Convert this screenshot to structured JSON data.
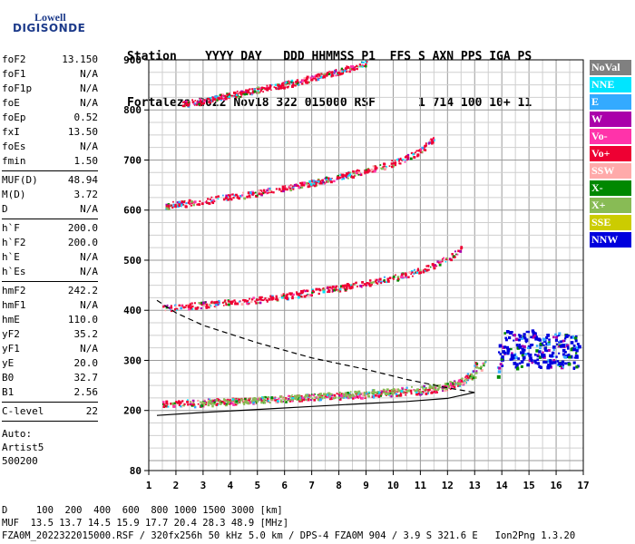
{
  "logo": {
    "line1": "Lowell",
    "line2": "DIGISONDE"
  },
  "header": {
    "labels": [
      "Station",
      "YYYY",
      "DAY",
      "DDD",
      "HHMMSS",
      "P1",
      "FFS",
      "S",
      "AXN",
      "PPS",
      "IGA",
      "PS"
    ],
    "values": [
      "Fortaleza",
      "2022",
      "Nov18",
      "322",
      "015000",
      "RSF",
      "1",
      "714",
      "100",
      "10+",
      "11"
    ]
  },
  "params": [
    {
      "label": "foF2",
      "value": "13.150"
    },
    {
      "label": "foF1",
      "value": "N/A"
    },
    {
      "label": "foF1p",
      "value": "N/A"
    },
    {
      "label": "foE",
      "value": "N/A"
    },
    {
      "label": "foEp",
      "value": "0.52"
    },
    {
      "label": "fxI",
      "value": "13.50"
    },
    {
      "label": "foEs",
      "value": "N/A"
    },
    {
      "label": "fmin",
      "value": "1.50"
    },
    {
      "divider": true
    },
    {
      "label": "MUF(D)",
      "value": "48.94"
    },
    {
      "label": "M(D)",
      "value": "3.72"
    },
    {
      "label": "D",
      "value": "N/A"
    },
    {
      "divider": true
    },
    {
      "label": "h`F",
      "value": "200.0"
    },
    {
      "label": "h`F2",
      "value": "200.0"
    },
    {
      "label": "h`E",
      "value": "N/A"
    },
    {
      "label": "h`Es",
      "value": "N/A"
    },
    {
      "divider": true
    },
    {
      "label": "hmF2",
      "value": "242.2"
    },
    {
      "label": "hmF1",
      "value": "N/A"
    },
    {
      "label": "hmE",
      "value": "110.0"
    },
    {
      "label": "yF2",
      "value": "35.2"
    },
    {
      "label": "yF1",
      "value": "N/A"
    },
    {
      "label": "yE",
      "value": "20.0"
    },
    {
      "label": "B0",
      "value": "32.7"
    },
    {
      "label": "B1",
      "value": "2.56"
    },
    {
      "divider": true
    },
    {
      "label": "C-level",
      "value": "22"
    },
    {
      "divider": true
    }
  ],
  "autoscaling": [
    "Auto:",
    "Artist5",
    "500200"
  ],
  "legend": [
    {
      "label": "NoVal",
      "bg": "#808080",
      "fg": "#ffffff"
    },
    {
      "label": "NNE",
      "bg": "#00e5ff",
      "fg": "#ffffff"
    },
    {
      "label": "E",
      "bg": "#33aaff",
      "fg": "#ffffff"
    },
    {
      "label": "W",
      "bg": "#aa00aa",
      "fg": "#ffffff"
    },
    {
      "label": "Vo-",
      "bg": "#ff33aa",
      "fg": "#ffffff"
    },
    {
      "label": "Vo+",
      "bg": "#ee0033",
      "fg": "#ffffff"
    },
    {
      "label": "SSW",
      "bg": "#ffaaaa",
      "fg": "#ffffff"
    },
    {
      "label": "X-",
      "bg": "#008800",
      "fg": "#ffffff"
    },
    {
      "label": "X+",
      "bg": "#88bb55",
      "fg": "#ffffff"
    },
    {
      "label": "SSE",
      "bg": "#cccc00",
      "fg": "#ffffff"
    },
    {
      "label": "NNW",
      "bg": "#0000dd",
      "fg": "#ffffff"
    }
  ],
  "footer": {
    "line1": "D     100  200  400  600  800 1000 1500 3000 [km]",
    "line2": "MUF  13.5 13.7 14.5 15.9 17.7 20.4 28.3 48.9 [MHz]",
    "line3": "FZA0M_2022322015000.RSF / 320fx256h 50 kHz 5.0 km / DPS-4 FZA0M 904 / 3.9 S 321.6 E   Ion2Png 1.3.20"
  },
  "chart_data": {
    "type": "scatter",
    "xlim": [
      1,
      17
    ],
    "ylim": [
      80,
      900
    ],
    "x_ticks": [
      1,
      2,
      3,
      4,
      5,
      6,
      7,
      8,
      9,
      10,
      11,
      12,
      13,
      14,
      15,
      16,
      17
    ],
    "y_ticks": [
      80,
      200,
      300,
      400,
      500,
      600,
      700,
      800,
      900
    ],
    "grid": true,
    "traces": [
      {
        "name": "o-trace 1st hop",
        "color": "#ee0033",
        "points": [
          [
            1.5,
            214
          ],
          [
            3,
            218
          ],
          [
            5,
            222
          ],
          [
            7,
            228
          ],
          [
            9,
            233
          ],
          [
            10.5,
            238
          ],
          [
            11.5,
            242
          ],
          [
            12.2,
            250
          ],
          [
            12.6,
            262
          ],
          [
            12.9,
            280
          ],
          [
            13.1,
            300
          ]
        ]
      },
      {
        "name": "o-trace 2nd hop",
        "color": "#ee0033",
        "points": [
          [
            1.5,
            405
          ],
          [
            3,
            412
          ],
          [
            5,
            422
          ],
          [
            7,
            438
          ],
          [
            9,
            455
          ],
          [
            10.5,
            472
          ],
          [
            11.5,
            490
          ],
          [
            12.3,
            515
          ],
          [
            12.6,
            530
          ]
        ]
      },
      {
        "name": "o-trace 3rd hop",
        "color": "#ee0033",
        "points": [
          [
            1.6,
            610
          ],
          [
            3,
            620
          ],
          [
            5,
            635
          ],
          [
            7,
            655
          ],
          [
            9,
            680
          ],
          [
            10.3,
            700
          ],
          [
            11,
            720
          ],
          [
            11.5,
            745
          ]
        ]
      },
      {
        "name": "o-trace 4th hop",
        "color": "#ee0033",
        "points": [
          [
            2.2,
            812
          ],
          [
            4,
            830
          ],
          [
            6,
            852
          ],
          [
            8,
            878
          ],
          [
            9,
            895
          ]
        ]
      },
      {
        "name": "x-trace 1st hop",
        "color": "#88bb55",
        "points": [
          [
            2.5,
            214
          ],
          [
            5,
            222
          ],
          [
            8,
            232
          ],
          [
            11,
            244
          ],
          [
            12.3,
            255
          ],
          [
            13,
            272
          ],
          [
            13.4,
            300
          ]
        ]
      },
      {
        "name": "spread F",
        "color": "#0000dd",
        "points": [
          [
            13.8,
            300
          ],
          [
            14.2,
            340
          ],
          [
            14.5,
            320
          ],
          [
            15,
            330
          ],
          [
            15.5,
            320
          ],
          [
            16,
            325
          ],
          [
            16.5,
            318
          ],
          [
            16.8,
            322
          ]
        ]
      }
    ],
    "profile_curves": [
      {
        "style": "dashed",
        "points": [
          [
            1.3,
            420
          ],
          [
            2,
            395
          ],
          [
            3,
            370
          ],
          [
            5,
            335
          ],
          [
            7,
            305
          ],
          [
            9,
            282
          ],
          [
            10.5,
            262
          ],
          [
            12,
            245
          ],
          [
            13,
            236
          ]
        ]
      },
      {
        "style": "solid",
        "points": [
          [
            1.3,
            190
          ],
          [
            3,
            196
          ],
          [
            5,
            202
          ],
          [
            7,
            208
          ],
          [
            9,
            214
          ],
          [
            10.5,
            218
          ],
          [
            12,
            224
          ],
          [
            13,
            236
          ]
        ]
      }
    ]
  }
}
